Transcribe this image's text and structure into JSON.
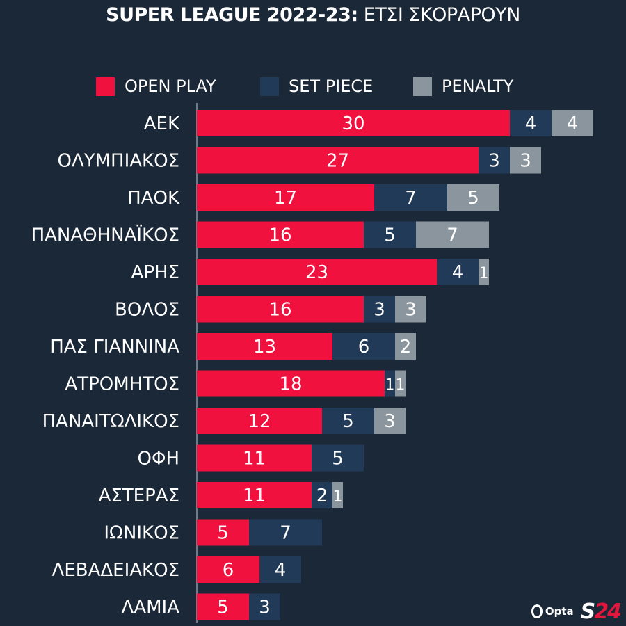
{
  "header": {
    "title_bold": "SUPER LEAGUE 2022-23:",
    "title_rest": " ΕΤΣΙ ΣΚΟΡΑΡΟΥΝ"
  },
  "colors": {
    "open_play": "#f0113f",
    "set_piece": "#213a57",
    "penalty": "#8a959d",
    "background": "#1b2838"
  },
  "legend": {
    "open_play": "OPEN PLAY",
    "set_piece": "SET PIECE",
    "penalty": "PENALTY"
  },
  "branding": {
    "opta": "Opta",
    "s24_s": "S",
    "s24_n": "24"
  },
  "chart_data": {
    "type": "bar",
    "orientation": "horizontal",
    "stacked": true,
    "title": "SUPER LEAGUE 2022-23: ΕΤΣΙ ΣΚΟΡΑΡΟΥΝ",
    "categories": [
      "ΑΕΚ",
      "ΟΛΥΜΠΙΑΚΟΣ",
      "ΠΑΟΚ",
      "ΠΑΝΑΘΗΝΑΪΚΟΣ",
      "ΑΡΗΣ",
      "ΒΟΛΟΣ",
      "ΠΑΣ ΓΙΑΝΝΙΝΑ",
      "ΑΤΡΟΜΗΤΟΣ",
      "ΠΑΝΑΙΤΩΛΙΚΟΣ",
      "ΟΦΗ",
      "ΑΣΤΕΡΑΣ",
      "ΙΩΝΙΚΟΣ",
      "ΛΕΒΑΔΕΙΑΚΟΣ",
      "ΛΑΜΙΑ"
    ],
    "series": [
      {
        "name": "OPEN PLAY",
        "values": [
          30,
          27,
          17,
          16,
          23,
          16,
          13,
          18,
          12,
          11,
          11,
          5,
          6,
          5
        ]
      },
      {
        "name": "SET PIECE",
        "values": [
          4,
          3,
          7,
          5,
          4,
          3,
          6,
          1,
          5,
          5,
          2,
          7,
          4,
          3
        ]
      },
      {
        "name": "PENALTY",
        "values": [
          4,
          3,
          5,
          7,
          1,
          3,
          2,
          1,
          3,
          0,
          1,
          0,
          0,
          0
        ]
      }
    ],
    "legend_position": "top",
    "grid": false,
    "xlim": [
      0,
      41
    ]
  }
}
